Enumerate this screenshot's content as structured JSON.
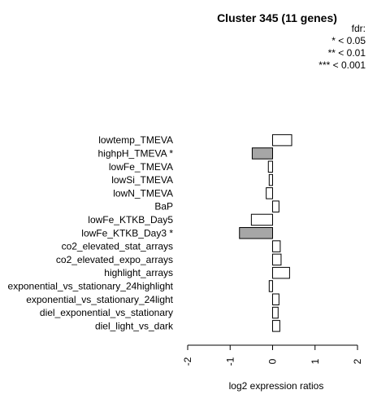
{
  "chart_data": {
    "type": "bar",
    "orientation": "horizontal",
    "title": "Cluster 345 (11 genes)",
    "legend": {
      "title": "fdr:",
      "entries": [
        "* < 0.05",
        "** < 0.01",
        "*** < 0.001"
      ],
      "placement": "top-right"
    },
    "categories": [
      "lowtemp_TMEVA",
      "highpH_TMEVA *",
      "lowFe_TMEVA",
      "lowSi_TMEVA",
      "lowN_TMEVA",
      "BaP",
      "lowFe_KTKB_Day5",
      "lowFe_KTKB_Day3 *",
      "co2_elevated_stat_arrays",
      "co2_elevated_expo_arrays",
      "highlight_arrays",
      "exponential_vs_stationary_24highlight",
      "exponential_vs_stationary_24light",
      "diel_exponential_vs_stationary",
      "diel_light_vs_dark"
    ],
    "values": [
      0.45,
      -0.48,
      -0.1,
      -0.08,
      -0.15,
      0.15,
      -0.5,
      -0.78,
      0.18,
      0.2,
      0.4,
      -0.08,
      0.15,
      0.13,
      0.17
    ],
    "significant": [
      false,
      true,
      false,
      false,
      false,
      false,
      false,
      true,
      false,
      false,
      false,
      false,
      false,
      false,
      false
    ],
    "colors": {
      "significant": "#a6a6a6",
      "normal": "#ffffff",
      "stroke": "#000000"
    },
    "xlabel": "log2 expression ratios",
    "xlim": [
      -2,
      2
    ],
    "xticks": [
      "-2",
      "-1",
      "0",
      "1",
      "2"
    ],
    "xtick_values": [
      -2,
      -1,
      0,
      1,
      2
    ],
    "grid": false
  }
}
